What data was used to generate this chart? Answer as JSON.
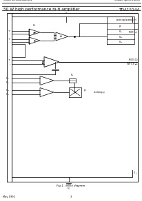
{
  "header_left": "Philips Semiconductors",
  "header_right": "Product specification",
  "title_left": "50 W high performance hi-fi amplifier",
  "title_right": "TDA1514A",
  "footer_left": "May 1992",
  "footer_center": "3",
  "fig_caption": "Fig 1.  Block diagram.",
  "bg_color": "#ffffff",
  "lc": "#000000",
  "gray": "#888888"
}
